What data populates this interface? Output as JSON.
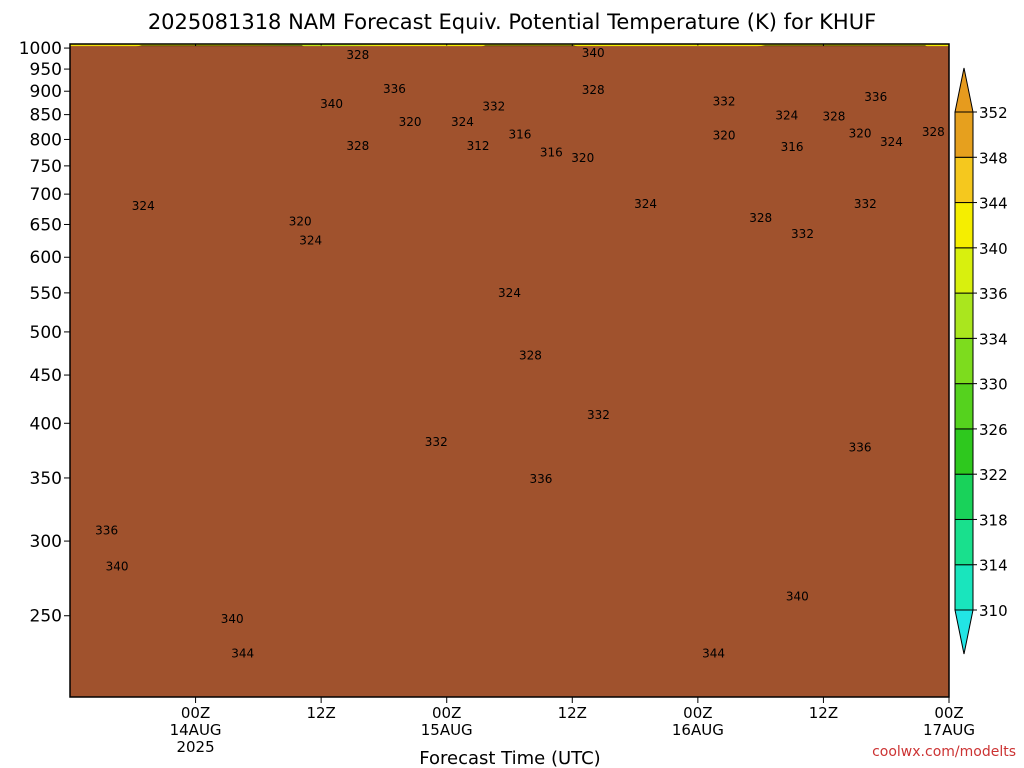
{
  "chart_data": {
    "type": "heatmap",
    "title": "2025081318 NAM Forecast Equiv. Potential Temperature (K) for KHUF",
    "xlabel": "Forecast Time (UTC)",
    "ylabel": "",
    "credit": "coolwx.com/modelts",
    "y_scale": "log",
    "y_inverted": true,
    "ylim": [
      1010,
      205
    ],
    "xlim": [
      -6,
      78
    ],
    "y_ticks": [
      250,
      300,
      350,
      400,
      450,
      500,
      550,
      600,
      650,
      700,
      750,
      800,
      850,
      900,
      950,
      1000
    ],
    "y_tick_labels": [
      "250",
      "300",
      "350",
      "400",
      "450",
      "500",
      "550",
      "600",
      "650",
      "700",
      "750",
      "800",
      "850",
      "900",
      "950",
      "1000"
    ],
    "x_ticks": [
      {
        "x": 6,
        "label": "00Z",
        "date": "14AUG",
        "year": "2025"
      },
      {
        "x": 18,
        "label": "12Z",
        "date": "",
        "year": ""
      },
      {
        "x": 30,
        "label": "00Z",
        "date": "15AUG",
        "year": ""
      },
      {
        "x": 42,
        "label": "12Z",
        "date": "",
        "year": ""
      },
      {
        "x": 54,
        "label": "00Z",
        "date": "16AUG",
        "year": ""
      },
      {
        "x": 66,
        "label": "12Z",
        "date": "",
        "year": ""
      },
      {
        "x": 78,
        "label": "00Z",
        "date": "17AUG",
        "year": ""
      }
    ],
    "grid": true,
    "ground_level": 1000,
    "colorbar": {
      "levels": [
        310,
        314,
        318,
        322,
        326,
        330,
        334,
        336,
        340,
        344,
        348,
        352
      ],
      "labels": [
        "310",
        "314",
        "318",
        "322",
        "326",
        "330",
        "334",
        "336",
        "340",
        "344",
        "348",
        "352"
      ],
      "colors": [
        "#22e5e5",
        "#19e5bd",
        "#19e08d",
        "#19d25a",
        "#2ec81e",
        "#55d21e",
        "#7ddc1e",
        "#aae61e",
        "#d8f00e",
        "#f5ee00",
        "#f5c81e",
        "#e6a01e",
        "#e69b1e"
      ]
    },
    "contour_labels": [
      {
        "value": "344",
        "x": 10.5,
        "p": 228
      },
      {
        "value": "344",
        "x": 55.5,
        "p": 228
      },
      {
        "value": "340",
        "x": 9.5,
        "p": 248
      },
      {
        "value": "340",
        "x": -1.5,
        "p": 282
      },
      {
        "value": "340",
        "x": 63.5,
        "p": 262
      },
      {
        "value": "336",
        "x": -2.5,
        "p": 308
      },
      {
        "value": "336",
        "x": 39.0,
        "p": 349
      },
      {
        "value": "336",
        "x": 69.5,
        "p": 377
      },
      {
        "value": "332",
        "x": 29.0,
        "p": 382
      },
      {
        "value": "332",
        "x": 44.5,
        "p": 408
      },
      {
        "value": "328",
        "x": 38.0,
        "p": 472
      },
      {
        "value": "324",
        "x": 36.0,
        "p": 550
      },
      {
        "value": "324",
        "x": 17.0,
        "p": 625
      },
      {
        "value": "324",
        "x": 1.0,
        "p": 680
      },
      {
        "value": "320",
        "x": 16.0,
        "p": 655
      },
      {
        "value": "324",
        "x": 49.0,
        "p": 683
      },
      {
        "value": "328",
        "x": -7.0,
        "p": 703
      },
      {
        "value": "328",
        "x": 60.0,
        "p": 660
      },
      {
        "value": "332",
        "x": 64.0,
        "p": 635
      },
      {
        "value": "332",
        "x": 70.0,
        "p": 683
      },
      {
        "value": "320",
        "x": 43.0,
        "p": 765
      },
      {
        "value": "316",
        "x": 40.0,
        "p": 775
      },
      {
        "value": "312",
        "x": 33.0,
        "p": 787
      },
      {
        "value": "316",
        "x": 37.0,
        "p": 810
      },
      {
        "value": "316",
        "x": 63.0,
        "p": 785
      },
      {
        "value": "320",
        "x": 26.5,
        "p": 835
      },
      {
        "value": "324",
        "x": 31.5,
        "p": 835
      },
      {
        "value": "332",
        "x": 34.5,
        "p": 867
      },
      {
        "value": "320",
        "x": 56.5,
        "p": 808
      },
      {
        "value": "320",
        "x": 69.5,
        "p": 812
      },
      {
        "value": "324",
        "x": 72.5,
        "p": 795
      },
      {
        "value": "328",
        "x": 76.5,
        "p": 815
      },
      {
        "value": "324",
        "x": 62.5,
        "p": 848
      },
      {
        "value": "328",
        "x": 67.0,
        "p": 846
      },
      {
        "value": "332",
        "x": 56.5,
        "p": 878
      },
      {
        "value": "336",
        "x": 71.0,
        "p": 887
      },
      {
        "value": "328",
        "x": 44.0,
        "p": 903
      },
      {
        "value": "328",
        "x": -10.0,
        "p": 818
      },
      {
        "value": "328",
        "x": 21.5,
        "p": 787
      },
      {
        "value": "340",
        "x": 19.0,
        "p": 872
      },
      {
        "value": "336",
        "x": 25.0,
        "p": 905
      },
      {
        "value": "328",
        "x": 21.5,
        "p": 983
      },
      {
        "value": "340",
        "x": 44.0,
        "p": 988
      }
    ]
  }
}
